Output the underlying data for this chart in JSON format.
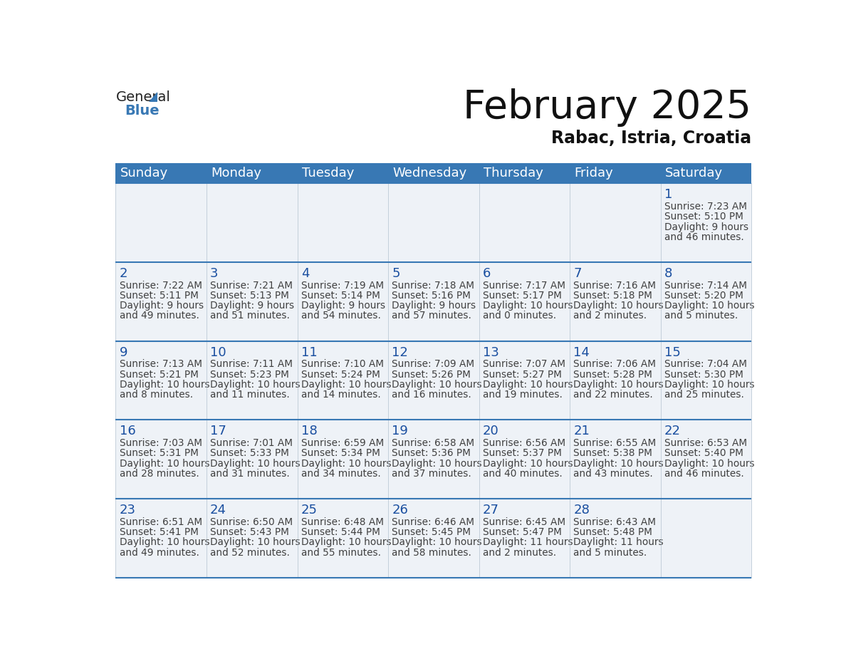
{
  "title": "February 2025",
  "subtitle": "Rabac, Istria, Croatia",
  "days_of_week": [
    "Sunday",
    "Monday",
    "Tuesday",
    "Wednesday",
    "Thursday",
    "Friday",
    "Saturday"
  ],
  "header_bg": "#3878b4",
  "header_text": "#ffffff",
  "cell_bg": "#eef2f7",
  "border_color": "#3878b4",
  "day_number_color": "#1a4fa0",
  "info_text_color": "#404040",
  "title_fontsize": 40,
  "subtitle_fontsize": 17,
  "header_fontsize": 13,
  "day_num_fontsize": 13,
  "info_fontsize": 9.8,
  "logo_general_fontsize": 14,
  "logo_blue_fontsize": 14,
  "calendar_data": [
    [
      null,
      null,
      null,
      null,
      null,
      null,
      {
        "day": "1",
        "sunrise": "7:23 AM",
        "sunset": "5:10 PM",
        "daylight": "9 hours",
        "daylight2": "and 46 minutes."
      }
    ],
    [
      {
        "day": "2",
        "sunrise": "7:22 AM",
        "sunset": "5:11 PM",
        "daylight": "9 hours",
        "daylight2": "and 49 minutes."
      },
      {
        "day": "3",
        "sunrise": "7:21 AM",
        "sunset": "5:13 PM",
        "daylight": "9 hours",
        "daylight2": "and 51 minutes."
      },
      {
        "day": "4",
        "sunrise": "7:19 AM",
        "sunset": "5:14 PM",
        "daylight": "9 hours",
        "daylight2": "and 54 minutes."
      },
      {
        "day": "5",
        "sunrise": "7:18 AM",
        "sunset": "5:16 PM",
        "daylight": "9 hours",
        "daylight2": "and 57 minutes."
      },
      {
        "day": "6",
        "sunrise": "7:17 AM",
        "sunset": "5:17 PM",
        "daylight": "10 hours",
        "daylight2": "and 0 minutes."
      },
      {
        "day": "7",
        "sunrise": "7:16 AM",
        "sunset": "5:18 PM",
        "daylight": "10 hours",
        "daylight2": "and 2 minutes."
      },
      {
        "day": "8",
        "sunrise": "7:14 AM",
        "sunset": "5:20 PM",
        "daylight": "10 hours",
        "daylight2": "and 5 minutes."
      }
    ],
    [
      {
        "day": "9",
        "sunrise": "7:13 AM",
        "sunset": "5:21 PM",
        "daylight": "10 hours",
        "daylight2": "and 8 minutes."
      },
      {
        "day": "10",
        "sunrise": "7:11 AM",
        "sunset": "5:23 PM",
        "daylight": "10 hours",
        "daylight2": "and 11 minutes."
      },
      {
        "day": "11",
        "sunrise": "7:10 AM",
        "sunset": "5:24 PM",
        "daylight": "10 hours",
        "daylight2": "and 14 minutes."
      },
      {
        "day": "12",
        "sunrise": "7:09 AM",
        "sunset": "5:26 PM",
        "daylight": "10 hours",
        "daylight2": "and 16 minutes."
      },
      {
        "day": "13",
        "sunrise": "7:07 AM",
        "sunset": "5:27 PM",
        "daylight": "10 hours",
        "daylight2": "and 19 minutes."
      },
      {
        "day": "14",
        "sunrise": "7:06 AM",
        "sunset": "5:28 PM",
        "daylight": "10 hours",
        "daylight2": "and 22 minutes."
      },
      {
        "day": "15",
        "sunrise": "7:04 AM",
        "sunset": "5:30 PM",
        "daylight": "10 hours",
        "daylight2": "and 25 minutes."
      }
    ],
    [
      {
        "day": "16",
        "sunrise": "7:03 AM",
        "sunset": "5:31 PM",
        "daylight": "10 hours",
        "daylight2": "and 28 minutes."
      },
      {
        "day": "17",
        "sunrise": "7:01 AM",
        "sunset": "5:33 PM",
        "daylight": "10 hours",
        "daylight2": "and 31 minutes."
      },
      {
        "day": "18",
        "sunrise": "6:59 AM",
        "sunset": "5:34 PM",
        "daylight": "10 hours",
        "daylight2": "and 34 minutes."
      },
      {
        "day": "19",
        "sunrise": "6:58 AM",
        "sunset": "5:36 PM",
        "daylight": "10 hours",
        "daylight2": "and 37 minutes."
      },
      {
        "day": "20",
        "sunrise": "6:56 AM",
        "sunset": "5:37 PM",
        "daylight": "10 hours",
        "daylight2": "and 40 minutes."
      },
      {
        "day": "21",
        "sunrise": "6:55 AM",
        "sunset": "5:38 PM",
        "daylight": "10 hours",
        "daylight2": "and 43 minutes."
      },
      {
        "day": "22",
        "sunrise": "6:53 AM",
        "sunset": "5:40 PM",
        "daylight": "10 hours",
        "daylight2": "and 46 minutes."
      }
    ],
    [
      {
        "day": "23",
        "sunrise": "6:51 AM",
        "sunset": "5:41 PM",
        "daylight": "10 hours",
        "daylight2": "and 49 minutes."
      },
      {
        "day": "24",
        "sunrise": "6:50 AM",
        "sunset": "5:43 PM",
        "daylight": "10 hours",
        "daylight2": "and 52 minutes."
      },
      {
        "day": "25",
        "sunrise": "6:48 AM",
        "sunset": "5:44 PM",
        "daylight": "10 hours",
        "daylight2": "and 55 minutes."
      },
      {
        "day": "26",
        "sunrise": "6:46 AM",
        "sunset": "5:45 PM",
        "daylight": "10 hours",
        "daylight2": "and 58 minutes."
      },
      {
        "day": "27",
        "sunrise": "6:45 AM",
        "sunset": "5:47 PM",
        "daylight": "11 hours",
        "daylight2": "and 2 minutes."
      },
      {
        "day": "28",
        "sunrise": "6:43 AM",
        "sunset": "5:48 PM",
        "daylight": "11 hours",
        "daylight2": "and 5 minutes."
      },
      null
    ]
  ]
}
